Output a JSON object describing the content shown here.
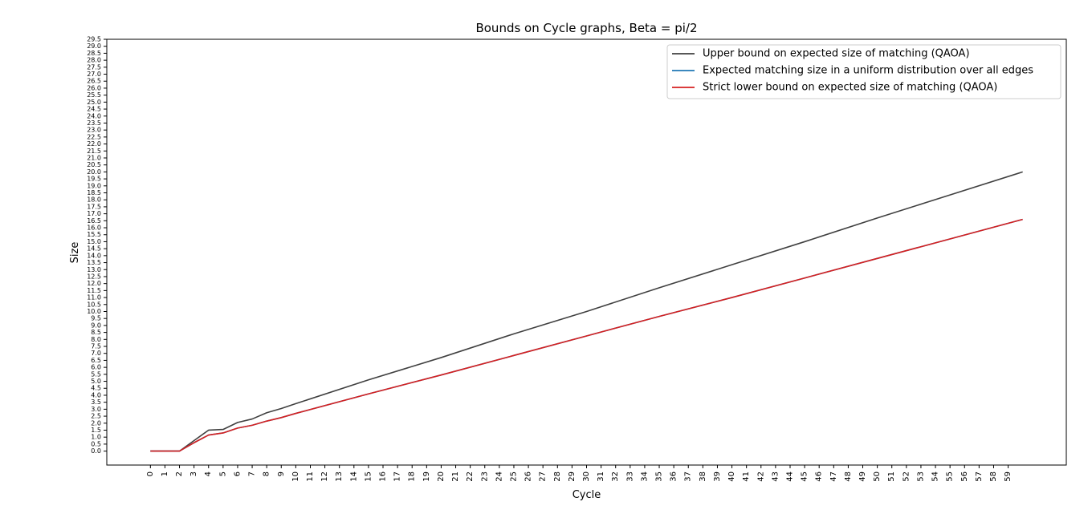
{
  "chart_data": {
    "type": "line",
    "title": "Bounds on Cycle graphs, Beta = pi/2",
    "xlabel": "Cycle",
    "ylabel": "Size",
    "xlim": [
      -3,
      63
    ],
    "ylim": [
      -1,
      29.5
    ],
    "x_ticks": [
      0,
      1,
      2,
      3,
      4,
      5,
      6,
      7,
      8,
      9,
      10,
      11,
      12,
      13,
      14,
      15,
      16,
      17,
      18,
      19,
      20,
      21,
      22,
      23,
      24,
      25,
      26,
      27,
      28,
      29,
      30,
      31,
      32,
      33,
      34,
      35,
      36,
      37,
      38,
      39,
      40,
      41,
      42,
      43,
      44,
      45,
      46,
      47,
      48,
      49,
      50,
      51,
      52,
      53,
      54,
      55,
      56,
      57,
      58,
      59
    ],
    "y_ticks": [
      "0.0",
      "0.5",
      "1.0",
      "1.5",
      "2.0",
      "2.5",
      "3.0",
      "3.5",
      "4.0",
      "4.5",
      "5.0",
      "5.5",
      "6.0",
      "6.5",
      "7.0",
      "7.5",
      "8.0",
      "8.5",
      "9.0",
      "9.5",
      "10.0",
      "10.5",
      "11.0",
      "11.5",
      "12.0",
      "12.5",
      "13.0",
      "13.5",
      "14.0",
      "14.5",
      "15.0",
      "15.5",
      "16.0",
      "16.5",
      "17.0",
      "17.5",
      "18.0",
      "18.5",
      "19.0",
      "19.5",
      "20.0",
      "20.5",
      "21.0",
      "21.5",
      "22.0",
      "22.5",
      "23.0",
      "23.5",
      "24.0",
      "24.5",
      "25.0",
      "25.5",
      "26.0",
      "26.5",
      "27.0",
      "27.5",
      "28.0",
      "28.5",
      "29.0",
      "29.5"
    ],
    "legend_position": "top-right",
    "grid": false,
    "series": [
      {
        "name": "Upper bound on expected size of matching  (QAOA)",
        "color": "#404040",
        "x": [
          0,
          1,
          2,
          3,
          4,
          5,
          6,
          7,
          8,
          9,
          10,
          15,
          20,
          25,
          30,
          35,
          40,
          45,
          50,
          55,
          60
        ],
        "values": [
          0,
          0,
          0,
          0.75,
          1.5,
          1.55,
          2.05,
          2.3,
          2.75,
          3.05,
          3.4,
          5.1,
          6.7,
          8.4,
          10.0,
          11.7,
          13.35,
          15.0,
          16.7,
          18.35,
          20.0
        ]
      },
      {
        "name": "Expected matching size in a uniform distribution over all edges",
        "color": "#1f77b4",
        "x": [
          0,
          1,
          2,
          3,
          4,
          5,
          6,
          7,
          8,
          9,
          10,
          15,
          20,
          25,
          30,
          35,
          40,
          45,
          50,
          55,
          60
        ],
        "values": [
          0,
          0,
          0,
          0.6,
          1.15,
          1.3,
          1.65,
          1.85,
          2.15,
          2.4,
          2.7,
          4.1,
          5.45,
          6.85,
          8.25,
          9.65,
          11.0,
          12.4,
          13.8,
          15.2,
          16.6
        ]
      },
      {
        "name": "Strict lower bound on expected size of matching  (QAOA)",
        "color": "#d62020",
        "x": [
          0,
          1,
          2,
          3,
          4,
          5,
          6,
          7,
          8,
          9,
          10,
          15,
          20,
          25,
          30,
          35,
          40,
          45,
          50,
          55,
          60
        ],
        "values": [
          0,
          0,
          0,
          0.6,
          1.15,
          1.3,
          1.65,
          1.85,
          2.15,
          2.4,
          2.7,
          4.1,
          5.45,
          6.85,
          8.25,
          9.65,
          11.0,
          12.4,
          13.8,
          15.2,
          16.6
        ]
      }
    ]
  }
}
